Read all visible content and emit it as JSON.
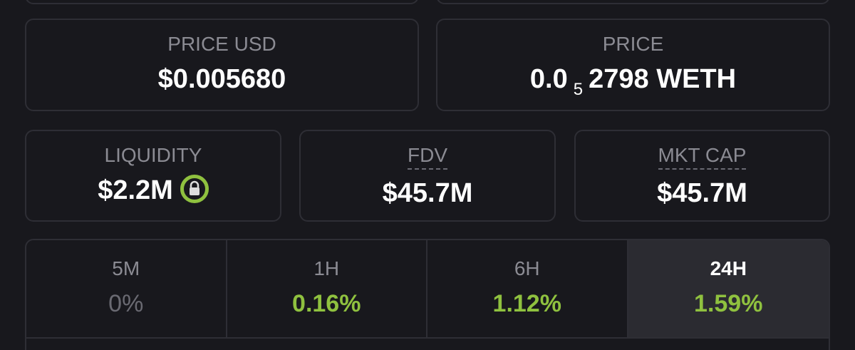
{
  "stats": {
    "price_usd": {
      "label": "PRICE USD",
      "value": "$0.005680"
    },
    "price": {
      "label": "PRICE",
      "lead": "0.0",
      "zeros": "5",
      "rest": "2798 WETH"
    },
    "liquidity": {
      "label": "LIQUIDITY",
      "value": "$2.2M"
    },
    "fdv": {
      "label": "FDV",
      "value": "$45.7M"
    },
    "mkt_cap": {
      "label": "MKT CAP",
      "value": "$45.7M"
    }
  },
  "tabs": [
    {
      "label": "5M",
      "change": "0%"
    },
    {
      "label": "1H",
      "change": "0.16%"
    },
    {
      "label": "6H",
      "change": "1.12%"
    },
    {
      "label": "24H",
      "change": "1.59%"
    }
  ]
}
